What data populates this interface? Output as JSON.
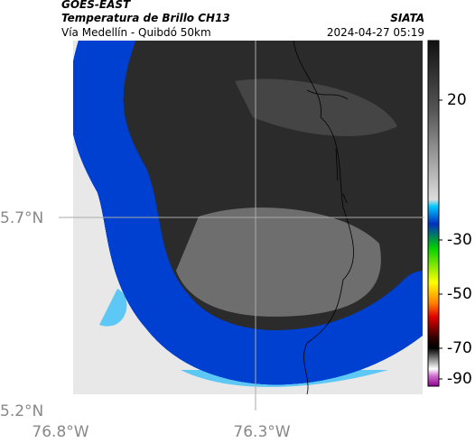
{
  "header": {
    "title": "GOES-EAST",
    "subtitle": "Temperatura de Brillo CH13",
    "region": "Vía Medellín - Quibdó 50km",
    "source": "SIATA",
    "timestamp": "2024-04-27 05:19"
  },
  "map": {
    "lat_labels": [
      "5.7°N",
      "5.2°N"
    ],
    "lon_labels": [
      "76.8°W",
      "76.3°W"
    ]
  },
  "colorbar": {
    "ticks": [
      20,
      -30,
      -50,
      -70,
      -90
    ]
  }
}
